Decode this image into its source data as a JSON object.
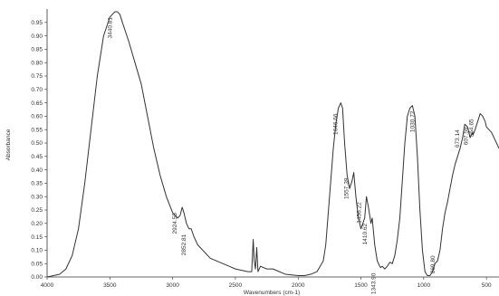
{
  "chart_data": {
    "type": "line",
    "title": "",
    "xlabel": "Wavenumbers (cm-1)",
    "ylabel": "Absorbance",
    "xlim": [
      4000,
      400
    ],
    "ylim": [
      0.0,
      1.0
    ],
    "x_ticks": [
      4000,
      3500,
      3000,
      2500,
      2000,
      1500,
      1000,
      500
    ],
    "x_tick_labels": [
      "4000",
      "3500",
      "3000",
      "2500",
      "2000",
      "1500",
      "1000",
      "500"
    ],
    "y_ticks": [
      0.0,
      0.05,
      0.1,
      0.15,
      0.2,
      0.25,
      0.3,
      0.35,
      0.4,
      0.45,
      0.5,
      0.55,
      0.6,
      0.65,
      0.7,
      0.75,
      0.8,
      0.85,
      0.9,
      0.95
    ],
    "y_tick_labels": [
      "0.00",
      "0.05",
      "0.10",
      "0.15",
      "0.20",
      "0.25",
      "0.30",
      "0.35",
      "0.40",
      "0.45",
      "0.50",
      "0.55",
      "0.60",
      "0.65",
      "0.70",
      "0.75",
      "0.80",
      "0.85",
      "0.90",
      "0.95"
    ],
    "grid": false,
    "series": [
      {
        "color": "#333333",
        "x": [
          4000,
          3900,
          3850,
          3800,
          3750,
          3700,
          3650,
          3600,
          3550,
          3500,
          3460,
          3440,
          3420,
          3400,
          3350,
          3300,
          3250,
          3200,
          3150,
          3100,
          3050,
          3000,
          2960,
          2940,
          2924,
          2910,
          2890,
          2870,
          2852,
          2830,
          2800,
          2700,
          2600,
          2500,
          2400,
          2370,
          2358,
          2350,
          2340,
          2330,
          2320,
          2300,
          2250,
          2200,
          2100,
          2000,
          1950,
          1900,
          1850,
          1800,
          1780,
          1750,
          1720,
          1700,
          1680,
          1660,
          1646,
          1630,
          1610,
          1590,
          1570,
          1557,
          1540,
          1520,
          1500,
          1470,
          1456,
          1440,
          1420,
          1410,
          1390,
          1370,
          1350,
          1343,
          1330,
          1310,
          1290,
          1270,
          1250,
          1230,
          1210,
          1190,
          1170,
          1150,
          1130,
          1110,
          1090,
          1070,
          1050,
          1030,
          1010,
          990,
          970,
          950,
          930,
          910,
          890,
          870,
          850,
          830,
          810,
          790,
          770,
          750,
          730,
          710,
          690,
          673,
          650,
          630,
          610,
          607,
          590,
          584,
          570,
          550,
          530,
          510,
          500,
          480,
          460,
          440,
          420,
          400
        ],
        "y": [
          0.0,
          0.01,
          0.03,
          0.08,
          0.18,
          0.35,
          0.55,
          0.75,
          0.9,
          0.97,
          0.99,
          0.99,
          0.98,
          0.95,
          0.88,
          0.8,
          0.72,
          0.6,
          0.48,
          0.38,
          0.3,
          0.24,
          0.22,
          0.23,
          0.26,
          0.24,
          0.2,
          0.18,
          0.18,
          0.15,
          0.12,
          0.07,
          0.05,
          0.03,
          0.02,
          0.02,
          0.14,
          0.06,
          0.03,
          0.11,
          0.02,
          0.04,
          0.03,
          0.03,
          0.01,
          0.005,
          0.005,
          0.01,
          0.02,
          0.06,
          0.12,
          0.3,
          0.48,
          0.57,
          0.63,
          0.65,
          0.63,
          0.5,
          0.38,
          0.33,
          0.36,
          0.39,
          0.3,
          0.22,
          0.18,
          0.22,
          0.3,
          0.26,
          0.2,
          0.22,
          0.12,
          0.06,
          0.04,
          0.035,
          0.04,
          0.03,
          0.04,
          0.055,
          0.05,
          0.08,
          0.14,
          0.22,
          0.36,
          0.5,
          0.6,
          0.63,
          0.64,
          0.6,
          0.45,
          0.25,
          0.1,
          0.02,
          0.005,
          0.005,
          0.02,
          0.05,
          0.06,
          0.1,
          0.18,
          0.24,
          0.28,
          0.33,
          0.38,
          0.42,
          0.45,
          0.48,
          0.52,
          0.57,
          0.56,
          0.52,
          0.54,
          0.53,
          0.55,
          0.56,
          0.58,
          0.61,
          0.6,
          0.58,
          0.56,
          0.55,
          0.54,
          0.52,
          0.5,
          0.48
        ]
      }
    ],
    "annotations": [
      {
        "text": "3440.81",
        "x": 3440,
        "y": 0.99
      },
      {
        "text": "2924.55",
        "x": 2924,
        "y": 0.26
      },
      {
        "text": "2852.81",
        "x": 2852,
        "y": 0.18
      },
      {
        "text": "1646.66",
        "x": 1646,
        "y": 0.63
      },
      {
        "text": "1557.39",
        "x": 1557,
        "y": 0.39
      },
      {
        "text": "1456.22",
        "x": 1456,
        "y": 0.3
      },
      {
        "text": "1410.62",
        "x": 1410,
        "y": 0.22
      },
      {
        "text": "1343.90",
        "x": 1343,
        "y": 0.035
      },
      {
        "text": "1030.72",
        "x": 1030,
        "y": 0.64
      },
      {
        "text": "869.80",
        "x": 869,
        "y": 0.1
      },
      {
        "text": "673.14",
        "x": 673,
        "y": 0.57
      },
      {
        "text": "607.59",
        "x": 607,
        "y": 0.58
      },
      {
        "text": "564.65",
        "x": 564,
        "y": 0.61
      }
    ]
  }
}
